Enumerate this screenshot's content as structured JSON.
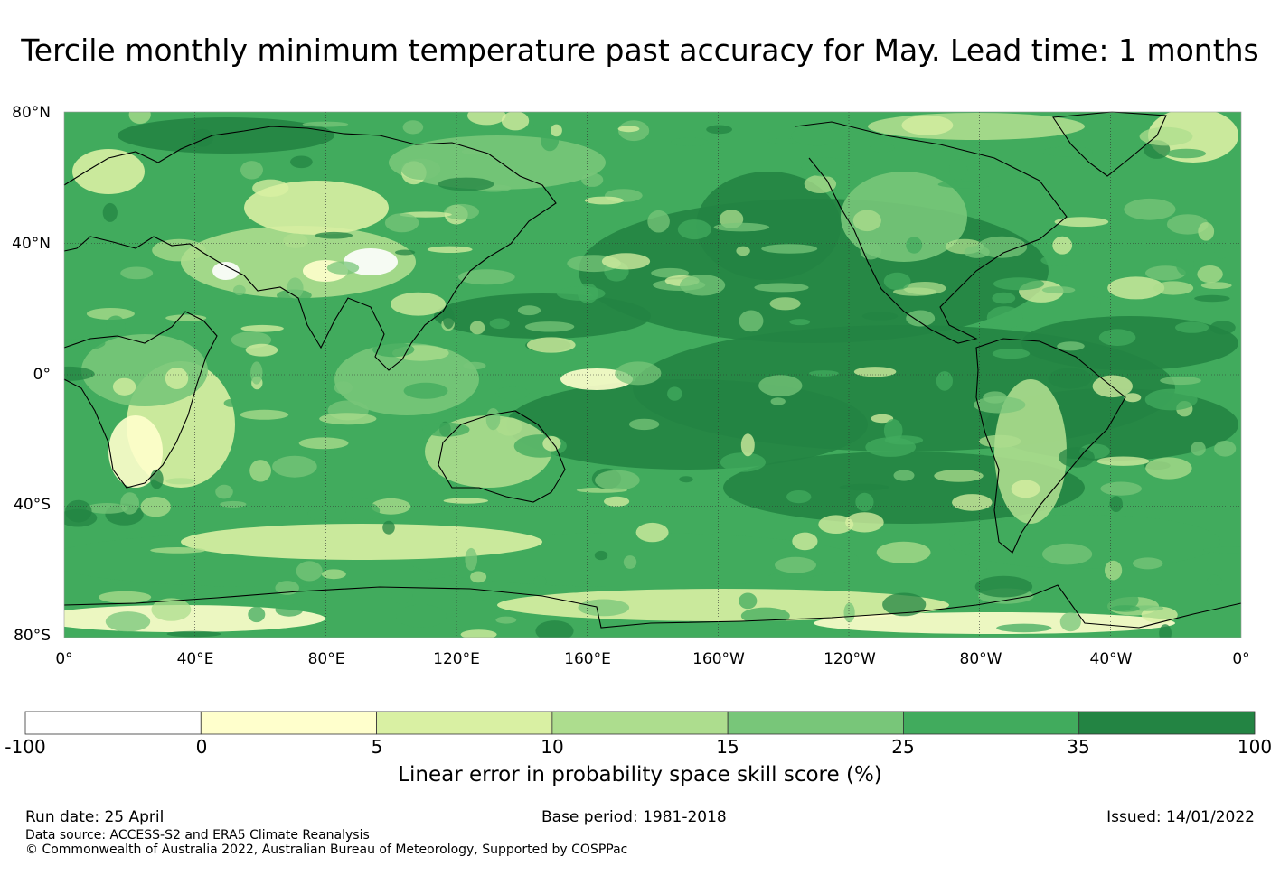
{
  "title": "Tercile monthly minimum temperature past accuracy for May. Lead time: 1 months",
  "map": {
    "lat_labels": [
      "80°N",
      "40°N",
      "0°",
      "40°S",
      "80°S"
    ],
    "lon_labels": [
      "0°",
      "40°E",
      "80°E",
      "120°E",
      "160°E",
      "160°W",
      "120°W",
      "80°W",
      "40°W",
      "0°"
    ],
    "colors": {
      "ocean_base": "#41ab5d",
      "land_base": "#78c679",
      "coast": "#000000",
      "grid": "#333333"
    }
  },
  "colorbar": {
    "title": "Linear error in probability space skill score (%)",
    "ticks": [
      "-100",
      "0",
      "5",
      "10",
      "15",
      "25",
      "35",
      "100"
    ],
    "bins": [
      {
        "from": "-100",
        "to": "0",
        "color": "#ffffff"
      },
      {
        "from": "0",
        "to": "5",
        "color": "#ffffcc"
      },
      {
        "from": "5",
        "to": "10",
        "color": "#d9f0a3"
      },
      {
        "from": "10",
        "to": "15",
        "color": "#addd8e"
      },
      {
        "from": "15",
        "to": "25",
        "color": "#78c679"
      },
      {
        "from": "25",
        "to": "35",
        "color": "#41ab5d"
      },
      {
        "from": "35",
        "to": "100",
        "color": "#238443"
      }
    ]
  },
  "footer": {
    "run_date": "Run date: 25 April",
    "base_period": "Base period: 1981-2018",
    "issued": "Issued: 14/01/2022",
    "data_source": "Data source: ACCESS-S2 and ERA5 Climate Reanalysis",
    "copyright": "© Commonwealth of Australia 2022, Australian Bureau of Meteorology, Supported by COSPPac"
  }
}
